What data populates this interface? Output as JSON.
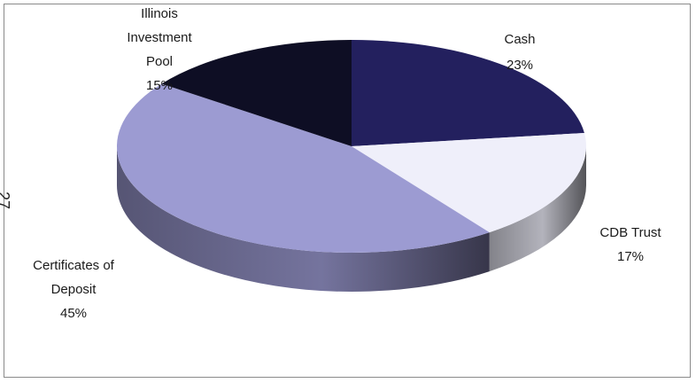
{
  "page_number": "27",
  "chart_data": {
    "type": "pie",
    "title": "",
    "three_d": true,
    "legend": "none",
    "slices": [
      {
        "label": "Cash",
        "value": 23,
        "value_label": "23%",
        "color": "#23205e"
      },
      {
        "label": "CDB Trust",
        "value": 17,
        "value_label": "17%",
        "color": "#efeffa"
      },
      {
        "label": "Certificates of Deposit",
        "value": 45,
        "value_label": "45%",
        "color": "#9c9bd2"
      },
      {
        "label": "Illinois Investment Pool",
        "value": 15,
        "value_label": "15%",
        "color": "#0e0e24"
      }
    ]
  }
}
